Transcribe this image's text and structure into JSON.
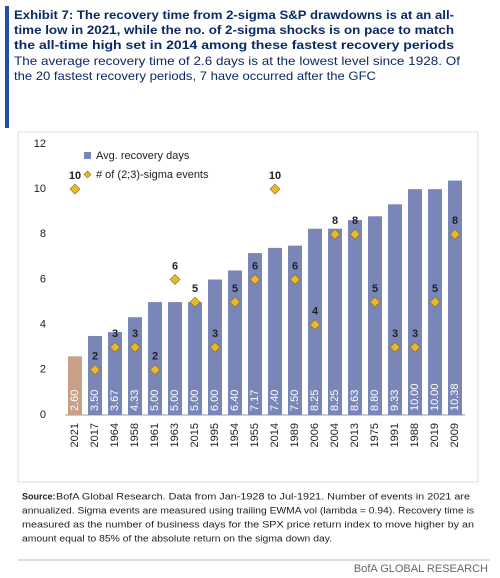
{
  "chart_data": {
    "type": "bar",
    "title": [
      "Exhibit 7: The recovery time from 2-sigma S&P drawdowns is at an all-",
      "time low in 2021, while the no. of 2-sigma shocks is on pace to match",
      "the all-time high set in 2014 among these fastest recovery periods"
    ],
    "subtitle": [
      "The average recovery time of 2.6 days is at the lowest level since 1928. Of",
      "the 20 fastest recovery periods, 7 have occurred after the GFC"
    ],
    "categories": [
      "2021",
      "2017",
      "1964",
      "1958",
      "1961",
      "1963",
      "2015",
      "1995",
      "1954",
      "1955",
      "2014",
      "1989",
      "2006",
      "2004",
      "2013",
      "1975",
      "1991",
      "1988",
      "2019",
      "2009"
    ],
    "series": [
      {
        "name": "Avg. recovery days",
        "color": "#7b86b8",
        "colors": [
          "#c8a088",
          "#7b86b8",
          "#7b86b8",
          "#7b86b8",
          "#7b86b8",
          "#7b86b8",
          "#7b86b8",
          "#7b86b8",
          "#7b86b8",
          "#7b86b8",
          "#7b86b8",
          "#7b86b8",
          "#7b86b8",
          "#7b86b8",
          "#7b86b8",
          "#7b86b8",
          "#7b86b8",
          "#7b86b8",
          "#7b86b8",
          "#7b86b8"
        ],
        "values": [
          2.6,
          3.5,
          3.67,
          4.33,
          5,
          5,
          5,
          6,
          6.4,
          7.17,
          7.4,
          7.5,
          8.25,
          8.25,
          8.63,
          8.8,
          9.33,
          10,
          10,
          10.38
        ],
        "value_labels": [
          "2.60",
          "3.50",
          "3.67",
          "4.33",
          "5.00",
          "5.00",
          "5.00",
          "6.00",
          "6.40",
          "7.17",
          "7.40",
          "7.50",
          "8.25",
          "8.25",
          "8.63",
          "8.80",
          "9.33",
          "10.00",
          "10.00",
          "10.38"
        ]
      },
      {
        "name": "# of (2;3)-sigma events",
        "type": "scatter",
        "color": "#e8b830",
        "values": [
          10,
          2,
          3,
          3,
          2,
          6,
          5,
          3,
          5,
          6,
          10,
          6,
          4,
          8,
          8,
          5,
          3,
          3,
          5,
          8
        ]
      }
    ],
    "ylim": [
      0,
      12
    ],
    "yticks": [
      0,
      2,
      4,
      6,
      8,
      10,
      12
    ],
    "grid": false,
    "source_label": "Source:",
    "source": [
      "BofA Global Research. Data from Jan-1928 to Jul-1921. Number of events in 2021 are",
      "annualized. Sigma events are measured using trailing EWMA vol (lambda = 0.94). Recovery time is",
      "measured as the number of business days for the SPX price return index to move higher by an",
      "amount equal to 85% of the absolute return on the sigma down day."
    ],
    "footer": "BofA GLOBAL RESEARCH"
  }
}
